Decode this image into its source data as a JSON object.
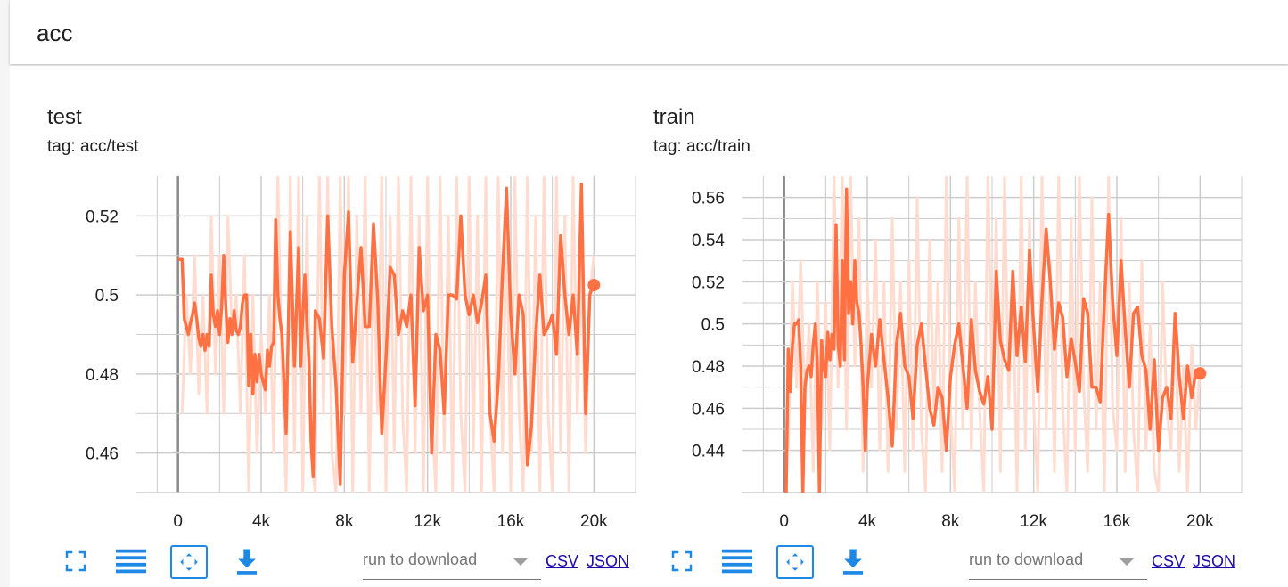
{
  "section": {
    "title": "acc"
  },
  "colors": {
    "accent": "#ff7043",
    "raw": "#ffdccf",
    "grid": "#cccccc",
    "icon": "#1e88e5",
    "link": "#1a0dab"
  },
  "panels": [
    {
      "title": "test",
      "tag": "tag: acc/test",
      "toolbar": {
        "fullscreen_icon": "fullscreen-icon",
        "legend_icon": "list-icon",
        "fit_icon": "fit-domain-icon",
        "download_icon": "download-icon",
        "run_placeholder": "run to download",
        "csv_label": "CSV",
        "json_label": "JSON"
      }
    },
    {
      "title": "train",
      "tag": "tag: acc/train",
      "toolbar": {
        "fullscreen_icon": "fullscreen-icon",
        "legend_icon": "list-icon",
        "fit_icon": "fit-domain-icon",
        "download_icon": "download-icon",
        "run_placeholder": "run to download",
        "csv_label": "CSV",
        "json_label": "JSON"
      }
    }
  ],
  "chart_data": [
    {
      "type": "line",
      "title": "test",
      "xlim": [
        -2000,
        22000
      ],
      "ylim": [
        0.45,
        0.53
      ],
      "xticks": [
        0,
        4000,
        8000,
        12000,
        16000,
        20000
      ],
      "xtick_labels": [
        "0",
        "4k",
        "8k",
        "12k",
        "16k",
        "20k"
      ],
      "yticks": [
        0.46,
        0.48,
        0.5,
        0.52
      ],
      "ytick_labels": [
        "0.46",
        "0.48",
        "0.5",
        "0.52"
      ],
      "grid": true,
      "series": [
        {
          "role": "smoothed",
          "x": [
            0,
            200,
            300,
            400,
            500,
            600,
            700,
            800,
            900,
            1000,
            1100,
            1200,
            1300,
            1400,
            1500,
            1600,
            1700,
            1800,
            1900,
            2000,
            2100,
            2200,
            2300,
            2400,
            2500,
            2600,
            2700,
            2800,
            2900,
            3000,
            3100,
            3200,
            3300,
            3400,
            3500,
            3600,
            3700,
            3800,
            3900,
            4000,
            4100,
            4200,
            4300,
            4400,
            4500,
            4600,
            4700,
            4800,
            4900,
            5000,
            5200,
            5400,
            5600,
            5800,
            5900,
            6000,
            6100,
            6200,
            6300,
            6400,
            6500,
            6600,
            6800,
            7000,
            7200,
            7400,
            7600,
            7800,
            8000,
            8200,
            8400,
            8600,
            8800,
            9000,
            9200,
            9400,
            9600,
            9800,
            10000,
            10200,
            10400,
            10600,
            10800,
            11000,
            11200,
            11400,
            11600,
            11800,
            12000,
            12200,
            12400,
            12600,
            12800,
            13000,
            13200,
            13400,
            13600,
            13800,
            14000,
            14200,
            14400,
            14600,
            14800,
            15000,
            15200,
            15400,
            15600,
            15800,
            16000,
            16200,
            16400,
            16600,
            16800,
            17000,
            17200,
            17400,
            17600,
            17800,
            18000,
            18200,
            18400,
            18600,
            18800,
            19000,
            19200,
            19400,
            19600,
            19800,
            20000
          ],
          "y": [
            0.509,
            0.509,
            0.494,
            0.492,
            0.49,
            0.493,
            0.495,
            0.498,
            0.494,
            0.489,
            0.487,
            0.49,
            0.486,
            0.49,
            0.487,
            0.505,
            0.495,
            0.492,
            0.496,
            0.49,
            0.497,
            0.51,
            0.497,
            0.488,
            0.494,
            0.49,
            0.496,
            0.491,
            0.49,
            0.492,
            0.498,
            0.5,
            0.5,
            0.477,
            0.49,
            0.475,
            0.485,
            0.478,
            0.485,
            0.48,
            0.478,
            0.476,
            0.486,
            0.482,
            0.487,
            0.488,
            0.519,
            0.5,
            0.494,
            0.49,
            0.465,
            0.516,
            0.482,
            0.512,
            0.482,
            0.495,
            0.505,
            0.493,
            0.483,
            0.463,
            0.454,
            0.496,
            0.494,
            0.484,
            0.52,
            0.492,
            0.477,
            0.452,
            0.505,
            0.521,
            0.483,
            0.498,
            0.512,
            0.492,
            0.492,
            0.518,
            0.499,
            0.465,
            0.484,
            0.507,
            0.505,
            0.49,
            0.496,
            0.492,
            0.5,
            0.472,
            0.512,
            0.496,
            0.5,
            0.46,
            0.49,
            0.486,
            0.47,
            0.5,
            0.5,
            0.499,
            0.52,
            0.5,
            0.495,
            0.5,
            0.493,
            0.498,
            0.505,
            0.47,
            0.463,
            0.478,
            0.505,
            0.527,
            0.495,
            0.48,
            0.5,
            0.495,
            0.457,
            0.467,
            0.49,
            0.505,
            0.49,
            0.492,
            0.495,
            0.485,
            0.515,
            0.5,
            0.49,
            0.5,
            0.485,
            0.528,
            0.47,
            0.5,
            0.503
          ]
        },
        {
          "role": "raw",
          "x": [
            200,
            400,
            600,
            800,
            1000,
            1200,
            1400,
            1600,
            1800,
            2000,
            2200,
            2400,
            2600,
            2800,
            3000,
            3200,
            3400,
            3600,
            3800,
            4000,
            4200,
            4400,
            4600,
            4800,
            5000,
            5200,
            5400,
            5600,
            5800,
            6000,
            6200,
            6400,
            6600,
            6800,
            7000,
            7200,
            7400,
            7600,
            7800,
            8000,
            8200,
            8400,
            8600,
            8800,
            9000,
            9200,
            9400,
            9600,
            9800,
            10000,
            10200,
            10400,
            10600,
            10800,
            11000,
            11200,
            11400,
            11600,
            11800,
            12000,
            12200,
            12400,
            12600,
            12800,
            13000,
            13200,
            13400,
            13600,
            13800,
            14000,
            14200,
            14400,
            14600,
            14800,
            15000,
            15200,
            15400,
            15600,
            15800,
            16000,
            16200,
            16400,
            16600,
            16800,
            17000,
            17200,
            17400,
            17600,
            17800,
            18000,
            18200,
            18400,
            18600,
            18800,
            19000,
            19200,
            19400,
            19600,
            19800,
            20000
          ],
          "y": [
            0.47,
            0.5,
            0.48,
            0.51,
            0.475,
            0.5,
            0.47,
            0.52,
            0.48,
            0.51,
            0.47,
            0.52,
            0.49,
            0.5,
            0.47,
            0.51,
            0.45,
            0.5,
            0.46,
            0.49,
            0.47,
            0.5,
            0.46,
            0.53,
            0.48,
            0.45,
            0.53,
            0.46,
            0.53,
            0.45,
            0.52,
            0.46,
            0.45,
            0.53,
            0.47,
            0.53,
            0.46,
            0.45,
            0.53,
            0.47,
            0.53,
            0.45,
            0.52,
            0.47,
            0.53,
            0.45,
            0.51,
            0.47,
            0.53,
            0.45,
            0.52,
            0.46,
            0.53,
            0.47,
            0.45,
            0.53,
            0.46,
            0.52,
            0.45,
            0.53,
            0.47,
            0.45,
            0.53,
            0.46,
            0.52,
            0.45,
            0.53,
            0.47,
            0.45,
            0.53,
            0.46,
            0.52,
            0.45,
            0.53,
            0.47,
            0.45,
            0.53,
            0.46,
            0.52,
            0.45,
            0.53,
            0.47,
            0.45,
            0.53,
            0.46,
            0.52,
            0.45,
            0.53,
            0.47,
            0.45,
            0.53,
            0.46,
            0.52,
            0.45,
            0.53,
            0.47,
            0.51,
            0.46,
            0.5,
            0.51
          ]
        }
      ],
      "last_point": {
        "x": 20000,
        "y": 0.5025
      }
    },
    {
      "type": "line",
      "title": "train",
      "xlim": [
        -2000,
        22000
      ],
      "ylim": [
        0.42,
        0.57
      ],
      "xticks": [
        0,
        4000,
        8000,
        12000,
        16000,
        20000
      ],
      "xtick_labels": [
        "0",
        "4k",
        "8k",
        "12k",
        "16k",
        "20k"
      ],
      "yticks": [
        0.44,
        0.46,
        0.48,
        0.5,
        0.52,
        0.54,
        0.56
      ],
      "ytick_labels": [
        "0.44",
        "0.46",
        "0.48",
        "0.5",
        "0.52",
        "0.54",
        "0.56"
      ],
      "grid": true,
      "series": [
        {
          "role": "smoothed",
          "x": [
            100,
            200,
            300,
            400,
            500,
            600,
            700,
            800,
            900,
            1000,
            1100,
            1200,
            1300,
            1400,
            1500,
            1600,
            1700,
            1800,
            1900,
            2000,
            2100,
            2200,
            2300,
            2400,
            2500,
            2600,
            2700,
            2800,
            2900,
            3000,
            3100,
            3200,
            3300,
            3400,
            3500,
            3600,
            3700,
            3800,
            3900,
            4000,
            4200,
            4400,
            4600,
            4800,
            5000,
            5200,
            5400,
            5600,
            5800,
            6000,
            6200,
            6400,
            6600,
            6800,
            7000,
            7200,
            7400,
            7600,
            7800,
            8000,
            8200,
            8400,
            8600,
            8800,
            9000,
            9200,
            9400,
            9600,
            9800,
            10000,
            10200,
            10400,
            10600,
            10800,
            11000,
            11200,
            11400,
            11600,
            11800,
            12000,
            12200,
            12400,
            12600,
            12800,
            13000,
            13200,
            13400,
            13600,
            13800,
            14000,
            14200,
            14400,
            14600,
            14800,
            15000,
            15200,
            15400,
            15600,
            15800,
            16000,
            16200,
            16400,
            16600,
            16800,
            17000,
            17200,
            17400,
            17600,
            17800,
            18000,
            18200,
            18400,
            18600,
            18800,
            19000,
            19200,
            19400,
            19600,
            19800,
            20000
          ],
          "y": [
            0.42,
            0.488,
            0.468,
            0.49,
            0.5,
            0.5,
            0.502,
            0.48,
            0.42,
            0.47,
            0.478,
            0.48,
            0.475,
            0.49,
            0.5,
            0.48,
            0.42,
            0.492,
            0.48,
            0.475,
            0.496,
            0.483,
            0.495,
            0.488,
            0.547,
            0.49,
            0.48,
            0.53,
            0.483,
            0.564,
            0.505,
            0.52,
            0.5,
            0.53,
            0.51,
            0.505,
            0.49,
            0.47,
            0.44,
            0.47,
            0.495,
            0.48,
            0.502,
            0.483,
            0.465,
            0.442,
            0.49,
            0.505,
            0.48,
            0.475,
            0.455,
            0.49,
            0.5,
            0.48,
            0.46,
            0.452,
            0.47,
            0.465,
            0.44,
            0.475,
            0.49,
            0.5,
            0.48,
            0.46,
            0.502,
            0.478,
            0.468,
            0.462,
            0.475,
            0.45,
            0.525,
            0.492,
            0.483,
            0.478,
            0.525,
            0.485,
            0.508,
            0.482,
            0.535,
            0.498,
            0.468,
            0.512,
            0.545,
            0.52,
            0.488,
            0.51,
            0.503,
            0.475,
            0.493,
            0.482,
            0.468,
            0.512,
            0.505,
            0.47,
            0.47,
            0.463,
            0.51,
            0.552,
            0.51,
            0.485,
            0.53,
            0.498,
            0.47,
            0.505,
            0.508,
            0.485,
            0.478,
            0.45,
            0.483,
            0.44,
            0.465,
            0.47,
            0.455,
            0.505,
            0.475,
            0.455,
            0.48,
            0.465,
            0.478,
            0.4765
          ]
        },
        {
          "role": "raw",
          "x": [
            200,
            400,
            600,
            800,
            1000,
            1200,
            1400,
            1600,
            1800,
            2000,
            2200,
            2400,
            2600,
            2800,
            3000,
            3200,
            3400,
            3600,
            3800,
            4000,
            4200,
            4400,
            4600,
            4800,
            5000,
            5200,
            5400,
            5600,
            5800,
            6000,
            6200,
            6400,
            6600,
            6800,
            7000,
            7200,
            7400,
            7600,
            7800,
            8000,
            8200,
            8400,
            8600,
            8800,
            9000,
            9200,
            9400,
            9600,
            9800,
            10000,
            10200,
            10400,
            10600,
            10800,
            11000,
            11200,
            11400,
            11600,
            11800,
            12000,
            12200,
            12400,
            12600,
            12800,
            13000,
            13200,
            13400,
            13600,
            13800,
            14000,
            14200,
            14400,
            14600,
            14800,
            15000,
            15200,
            15400,
            15600,
            15800,
            16000,
            16200,
            16400,
            16600,
            16800,
            17000,
            17200,
            17400,
            17600,
            17800,
            18000,
            18200,
            18400,
            18600,
            18800,
            19000,
            19200,
            19400,
            19600,
            19800,
            20000
          ],
          "y": [
            0.44,
            0.52,
            0.47,
            0.53,
            0.46,
            0.5,
            0.43,
            0.52,
            0.45,
            0.51,
            0.44,
            0.57,
            0.47,
            0.57,
            0.45,
            0.57,
            0.48,
            0.55,
            0.43,
            0.52,
            0.47,
            0.54,
            0.44,
            0.52,
            0.43,
            0.55,
            0.45,
            0.52,
            0.43,
            0.53,
            0.44,
            0.56,
            0.45,
            0.42,
            0.54,
            0.46,
            0.52,
            0.43,
            0.57,
            0.46,
            0.42,
            0.55,
            0.45,
            0.57,
            0.44,
            0.52,
            0.46,
            0.42,
            0.57,
            0.47,
            0.55,
            0.43,
            0.57,
            0.46,
            0.52,
            0.42,
            0.57,
            0.44,
            0.55,
            0.46,
            0.42,
            0.57,
            0.45,
            0.53,
            0.43,
            0.57,
            0.46,
            0.42,
            0.55,
            0.44,
            0.57,
            0.47,
            0.43,
            0.56,
            0.45,
            0.52,
            0.42,
            0.57,
            0.46,
            0.44,
            0.55,
            0.43,
            0.52,
            0.45,
            0.42,
            0.53,
            0.44,
            0.5,
            0.43,
            0.42,
            0.52,
            0.46,
            0.44,
            0.5,
            0.43,
            0.48,
            0.42,
            0.49,
            0.45,
            0.48
          ]
        }
      ],
      "last_point": {
        "x": 20000,
        "y": 0.4765
      }
    }
  ]
}
